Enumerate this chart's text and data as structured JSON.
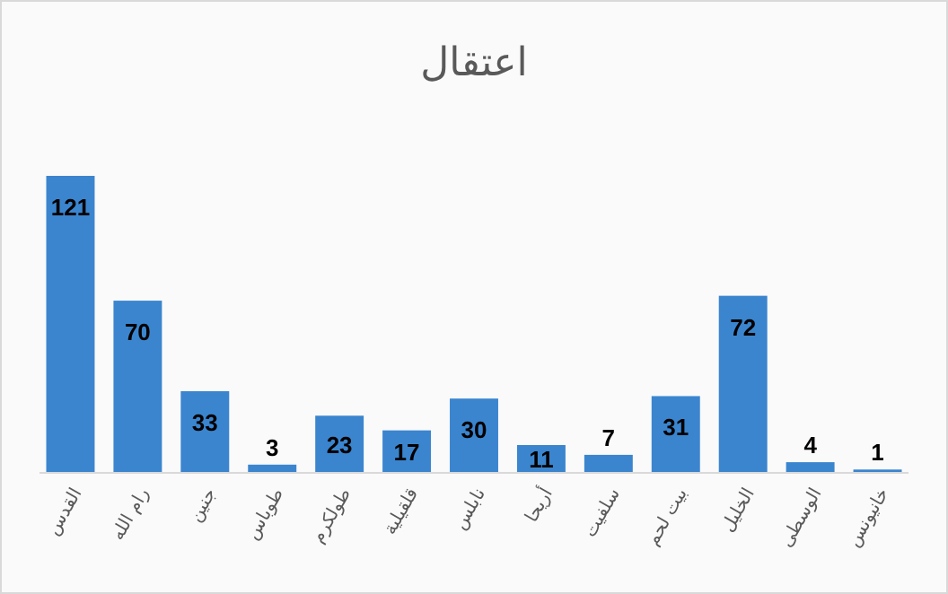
{
  "chart_data": {
    "type": "bar",
    "title": "اعتقال",
    "categories": [
      "القدس",
      "رام الله",
      "جنين",
      "طوباس",
      "طولكرم",
      "قلقيلية",
      "نابلس",
      "أريحا",
      "سلفيت",
      "بيت لحم",
      "الخليل",
      "الوسطى",
      "خانيونس"
    ],
    "values": [
      121,
      70,
      33,
      3,
      23,
      17,
      30,
      11,
      7,
      31,
      72,
      4,
      1
    ],
    "color": "#3b85cf",
    "data_labels": true,
    "grid": false,
    "legend": false
  }
}
